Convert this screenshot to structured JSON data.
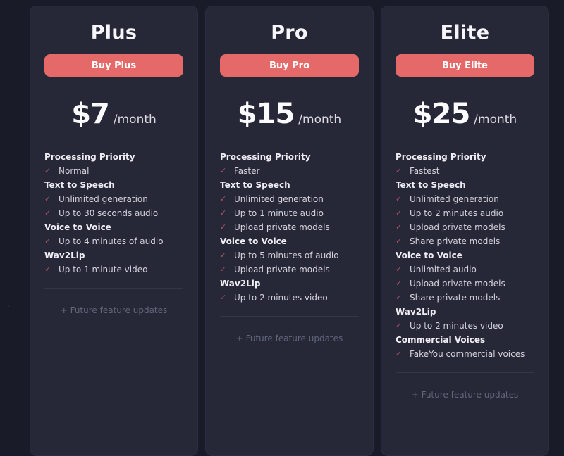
{
  "theme": {
    "page_background": "#1a1b29",
    "card_background": "#262737",
    "accent_button_color": "#e56969",
    "check_color": "#a65262",
    "muted_footer_color": "#62677b",
    "check_icon_glyph": "✓"
  },
  "plans": [
    {
      "name": "Plus",
      "buy_label": "Buy Plus",
      "price": "$7",
      "period": "/month",
      "features": [
        {
          "type": "heading",
          "text": "Processing Priority"
        },
        {
          "type": "item",
          "text": "Normal"
        },
        {
          "type": "heading",
          "text": "Text to Speech"
        },
        {
          "type": "item",
          "text": "Unlimited generation"
        },
        {
          "type": "item",
          "text": "Up to 30 seconds audio"
        },
        {
          "type": "heading",
          "text": "Voice to Voice"
        },
        {
          "type": "item",
          "text": "Up to 4 minutes of audio"
        },
        {
          "type": "heading",
          "text": "Wav2Lip"
        },
        {
          "type": "item",
          "text": "Up to 1 minute video"
        }
      ],
      "footer": "+ Future feature updates"
    },
    {
      "name": "Pro",
      "buy_label": "Buy Pro",
      "price": "$15",
      "period": "/month",
      "features": [
        {
          "type": "heading",
          "text": "Processing Priority"
        },
        {
          "type": "item",
          "text": "Faster"
        },
        {
          "type": "heading",
          "text": "Text to Speech"
        },
        {
          "type": "item",
          "text": "Unlimited generation"
        },
        {
          "type": "item",
          "text": "Up to 1 minute audio"
        },
        {
          "type": "item",
          "text": "Upload private models"
        },
        {
          "type": "heading",
          "text": "Voice to Voice"
        },
        {
          "type": "item",
          "text": "Up to 5 minutes of audio"
        },
        {
          "type": "item",
          "text": "Upload private models"
        },
        {
          "type": "heading",
          "text": "Wav2Lip"
        },
        {
          "type": "item",
          "text": "Up to 2 minutes video"
        }
      ],
      "footer": "+ Future feature updates"
    },
    {
      "name": "Elite",
      "buy_label": "Buy Elite",
      "price": "$25",
      "period": "/month",
      "features": [
        {
          "type": "heading",
          "text": "Processing Priority"
        },
        {
          "type": "item",
          "text": "Fastest"
        },
        {
          "type": "heading",
          "text": "Text to Speech"
        },
        {
          "type": "item",
          "text": "Unlimited generation"
        },
        {
          "type": "item",
          "text": "Up to 2 minutes audio"
        },
        {
          "type": "item",
          "text": "Upload private models"
        },
        {
          "type": "item",
          "text": "Share private models"
        },
        {
          "type": "heading",
          "text": "Voice to Voice"
        },
        {
          "type": "item",
          "text": "Unlimited audio"
        },
        {
          "type": "item",
          "text": "Upload private models"
        },
        {
          "type": "item",
          "text": "Share private models"
        },
        {
          "type": "heading",
          "text": "Wav2Lip"
        },
        {
          "type": "item",
          "text": "Up to 2 minutes video"
        },
        {
          "type": "heading",
          "text": "Commercial Voices"
        },
        {
          "type": "item",
          "text": "FakeYou commercial voices"
        }
      ],
      "footer": "+ Future feature updates"
    }
  ]
}
